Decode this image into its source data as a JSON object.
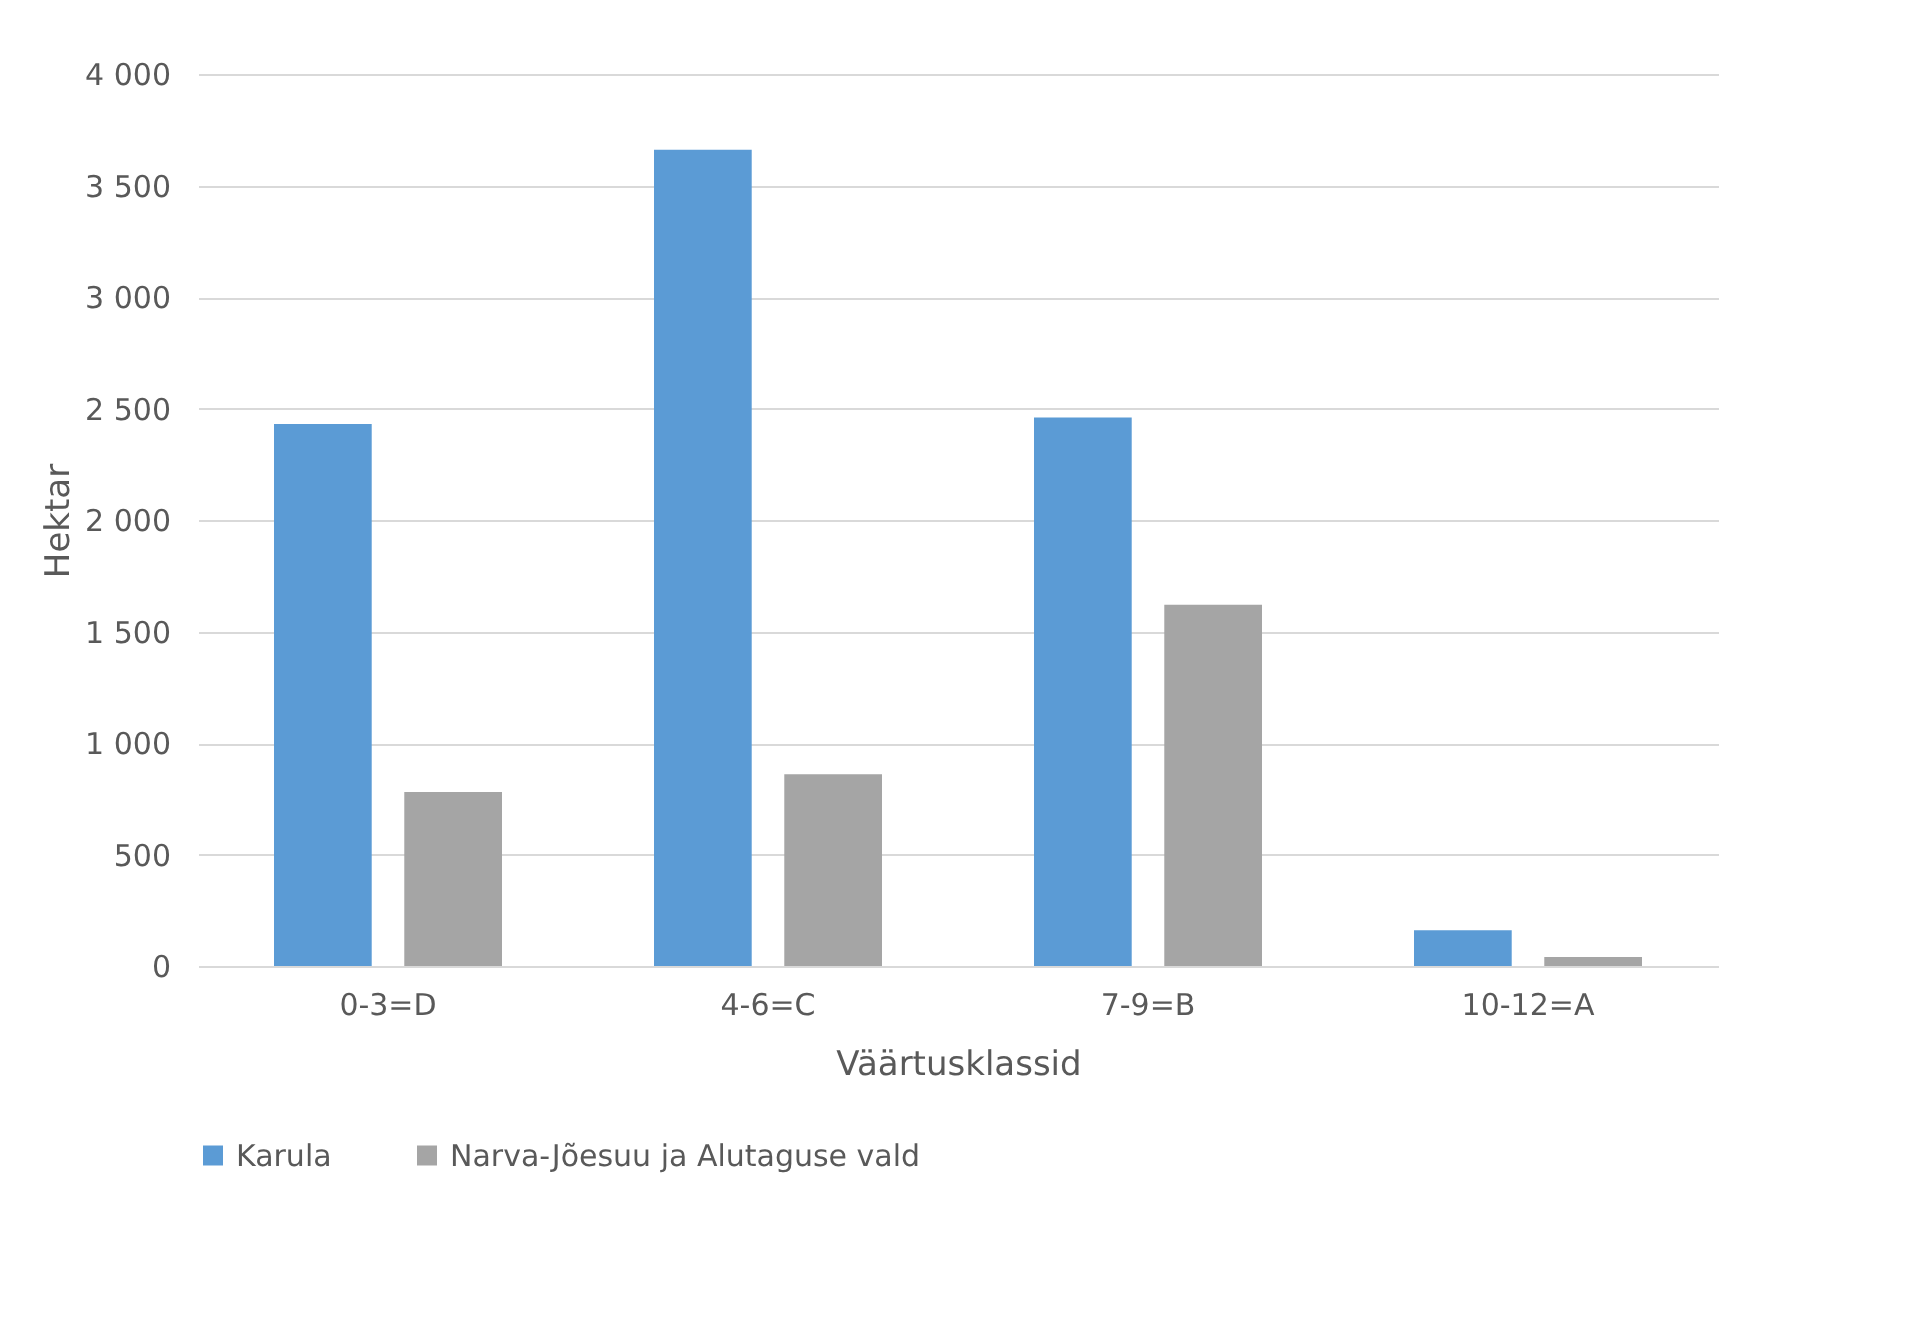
{
  "chart_data": {
    "type": "bar",
    "xlabel": "Väärtusklassid",
    "ylabel": "Hektar",
    "categories": [
      "0-3=D",
      "4-6=C",
      "7-9=B",
      "10-12=A"
    ],
    "series": [
      {
        "name": "Karula",
        "color": "#5b9bd5",
        "values": [
          2430,
          3660,
          2460,
          160
        ]
      },
      {
        "name": "Narva-Jõesuu ja Alutaguse vald",
        "color": "#a5a5a5",
        "values": [
          780,
          860,
          1620,
          40
        ]
      }
    ],
    "ylim": [
      0,
      4000
    ],
    "yticks": [
      0,
      500,
      {
        "value": 1000,
        "label": "1 000"
      },
      {
        "value": 1500,
        "label": "1 500"
      },
      {
        "value": 2000,
        "label": "2 000"
      },
      {
        "value": 2500,
        "label": "2 500"
      },
      {
        "value": 3000,
        "label": "3 000"
      },
      {
        "value": 3500,
        "label": "3 500"
      },
      {
        "value": 4000,
        "label": "4 000"
      }
    ],
    "grid": "y",
    "legend": "bottom"
  }
}
